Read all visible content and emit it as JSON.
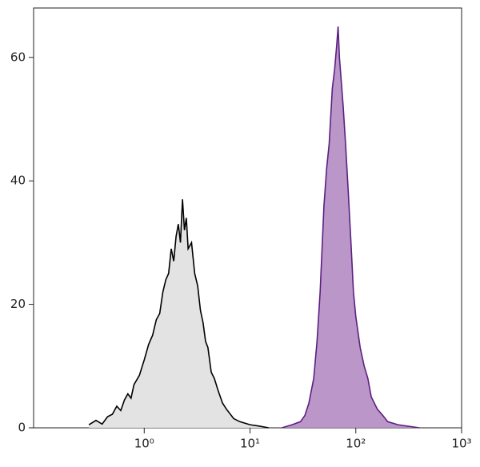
{
  "chart_data": {
    "type": "histogram-overlay",
    "xscale": "log",
    "xlim": [
      0.09,
      1000
    ],
    "ylim": [
      0,
      68
    ],
    "xticks": [
      {
        "value": 1,
        "label": "10⁰"
      },
      {
        "value": 10,
        "label": "10¹"
      },
      {
        "value": 100,
        "label": "10²"
      },
      {
        "value": 1000,
        "label": "10³"
      }
    ],
    "yticks": [
      0,
      20,
      40,
      60
    ],
    "series": [
      {
        "color": "#000000",
        "fill": "#e0e0e0",
        "x": [
          0.3,
          0.35,
          0.4,
          0.45,
          0.5,
          0.55,
          0.6,
          0.65,
          0.7,
          0.75,
          0.8,
          0.9,
          1.0,
          1.1,
          1.2,
          1.3,
          1.4,
          1.5,
          1.6,
          1.7,
          1.8,
          1.9,
          2.0,
          2.1,
          2.2,
          2.3,
          2.4,
          2.5,
          2.6,
          2.8,
          3.0,
          3.2,
          3.4,
          3.6,
          3.8,
          4.0,
          4.3,
          4.6,
          5.0,
          5.5,
          6,
          7,
          8,
          10,
          12,
          15
        ],
        "values": [
          0.5,
          1.2,
          0.6,
          1.8,
          2.2,
          3.5,
          2.8,
          4.5,
          5.5,
          4.8,
          7,
          8.5,
          11,
          13.5,
          15,
          17.5,
          18.5,
          22,
          24,
          25,
          29,
          27,
          31,
          33,
          30,
          37,
          32,
          34,
          29,
          30,
          25,
          23,
          19,
          17,
          14,
          13,
          9,
          8,
          6,
          4,
          3,
          1.5,
          1,
          0.5,
          0.3,
          0
        ]
      },
      {
        "color": "#5b1f80",
        "fill": "#b48bc3",
        "x": [
          20,
          25,
          30,
          33,
          36,
          40,
          43,
          46,
          50,
          53,
          56,
          60,
          63,
          66,
          68,
          70,
          73,
          76,
          80,
          85,
          90,
          95,
          100,
          110,
          120,
          130,
          140,
          160,
          180,
          200,
          250,
          300,
          400
        ],
        "values": [
          0,
          0.5,
          1,
          2,
          4,
          8,
          14,
          22,
          36,
          42,
          46,
          55,
          58,
          62,
          65,
          60,
          56,
          52,
          46,
          38,
          30,
          22,
          18,
          13,
          10,
          8,
          5,
          3,
          2,
          1,
          0.5,
          0.3,
          0
        ]
      }
    ]
  }
}
